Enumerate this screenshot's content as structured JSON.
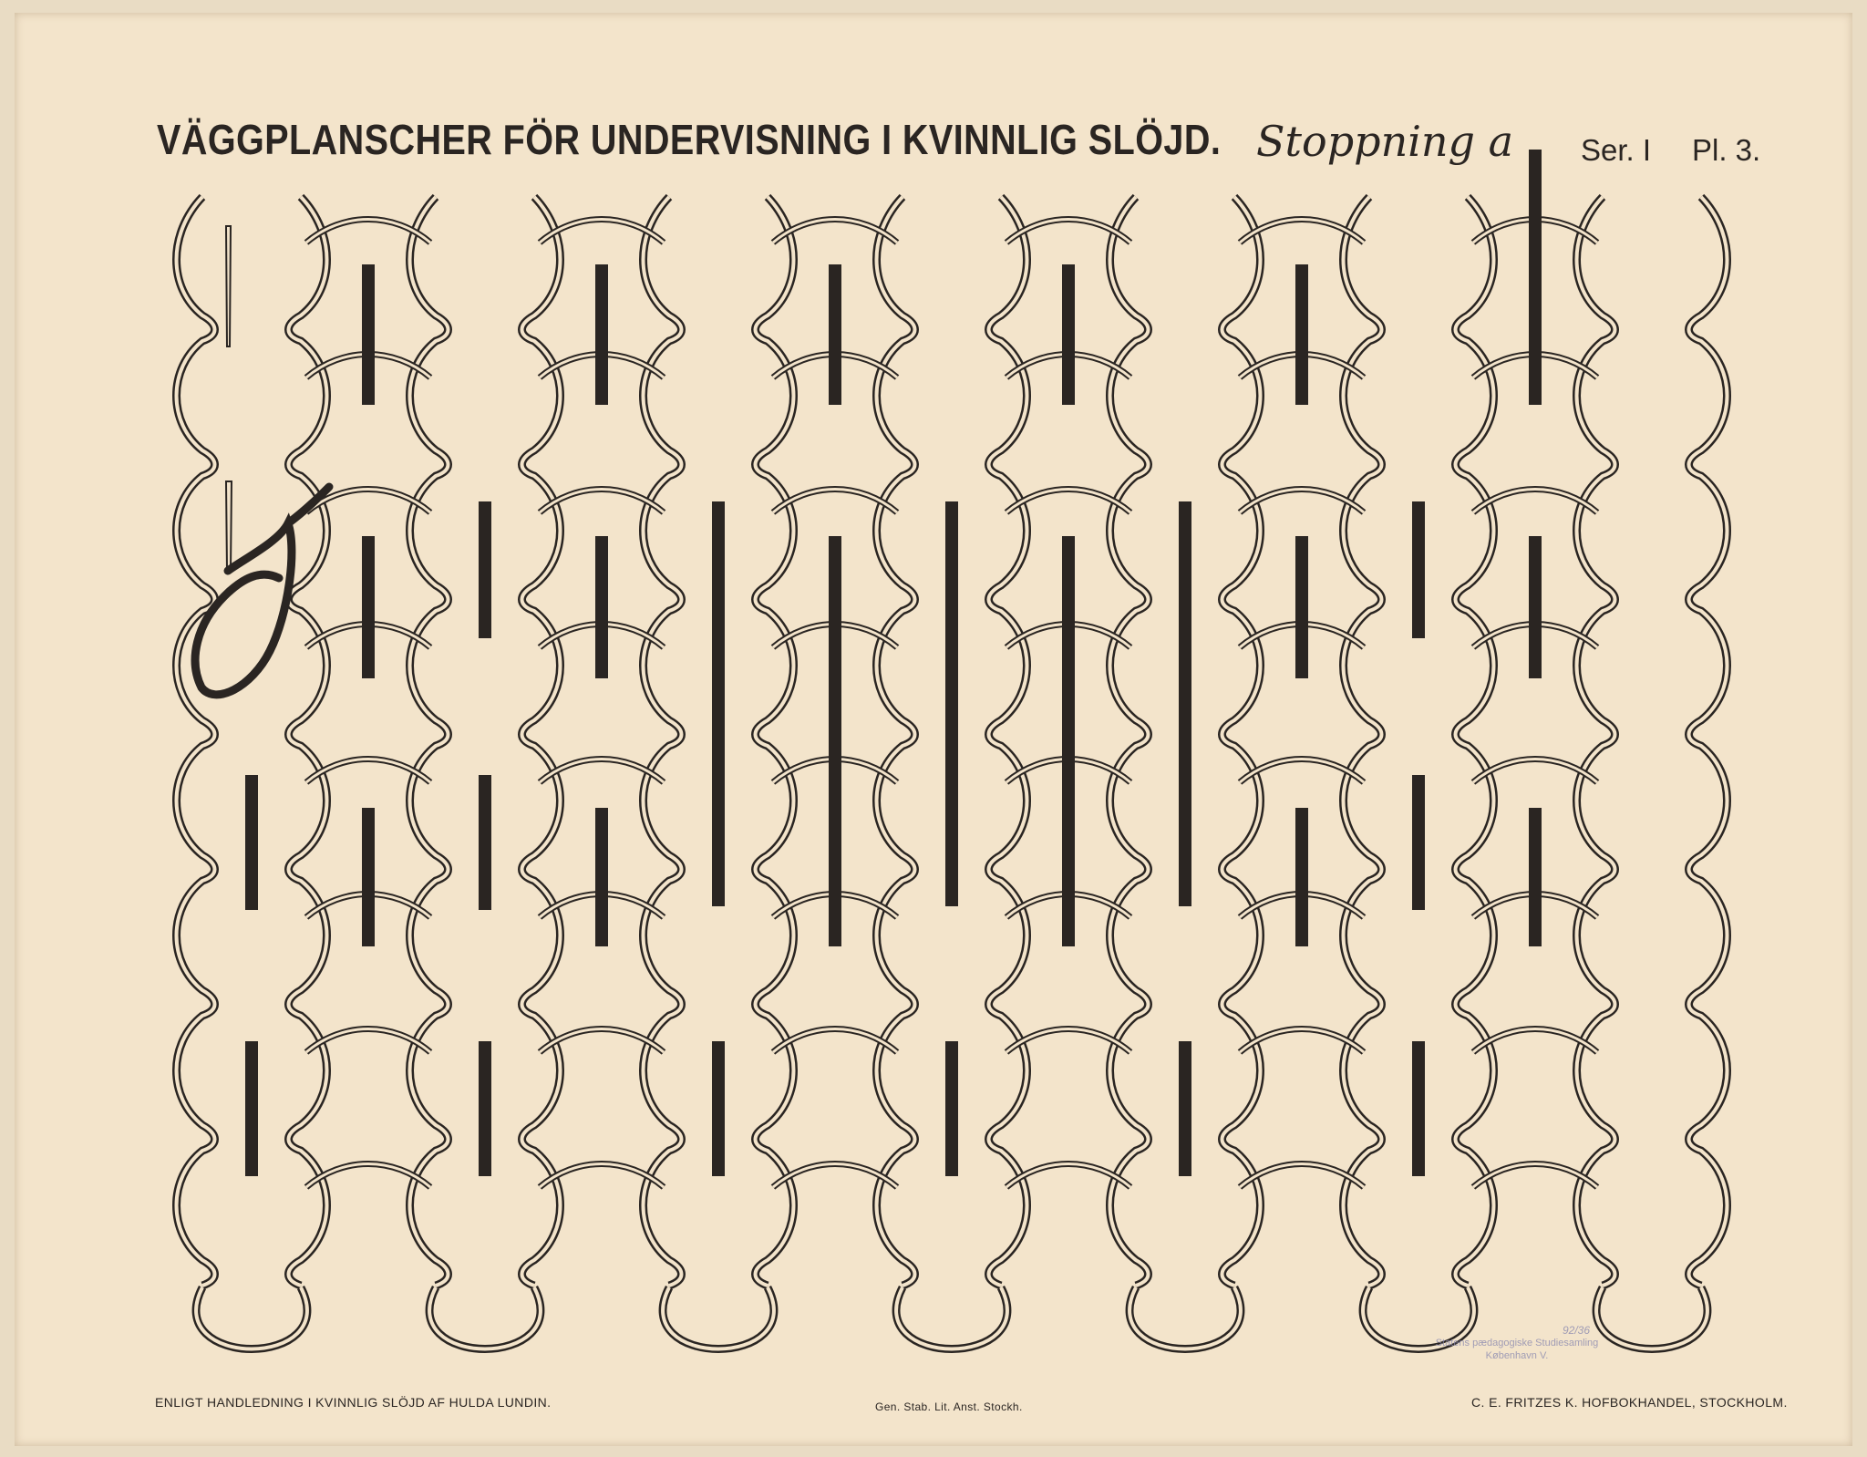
{
  "header": {
    "title": "VÄGGPLANSCHER FÖR UNDERVISNING I KVINNLIG SLÖJD.",
    "subject": "Stoppning a",
    "series": "Ser. I",
    "plate": "Pl. 3."
  },
  "footer": {
    "left": "ENLIGT HANDLEDNING I KVINNLIG SLÖJD AF HULDA LUNDIN.",
    "middle": "Gen. Stab. Lit. Anst. Stockh.",
    "right": "C. E. FRITZES K. HOFBOKHANDEL, STOCKHOLM."
  },
  "stamp": {
    "number": "92/36",
    "line1": "Statens pædagogiske Studiesamling",
    "line2": "København V."
  },
  "colors": {
    "paper": "#f3e4cb",
    "ink": "#2a2522"
  }
}
